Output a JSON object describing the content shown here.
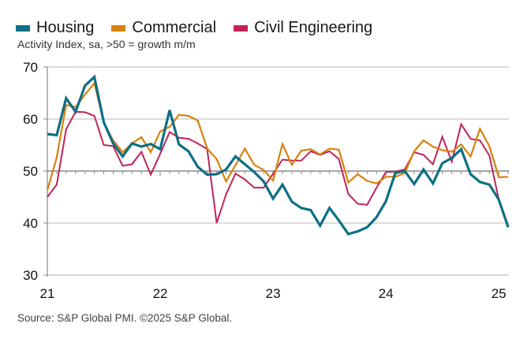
{
  "chart_data": {
    "type": "line",
    "title": "",
    "subtitle": "Activity Index, sa, >50 = growth m/m",
    "xlabel": "",
    "ylabel": "",
    "ylim": [
      30,
      70
    ],
    "yticks": [
      "30",
      "40",
      "50",
      "60",
      "70"
    ],
    "xticks": [
      "21",
      "22",
      "23",
      "24",
      "25"
    ],
    "reference_line": 50,
    "grid": true,
    "legend_position": "top-left",
    "x": [
      "Jan-21",
      "Feb-21",
      "Mar-21",
      "Apr-21",
      "May-21",
      "Jun-21",
      "Jul-21",
      "Aug-21",
      "Sep-21",
      "Oct-21",
      "Nov-21",
      "Dec-21",
      "Jan-22",
      "Feb-22",
      "Mar-22",
      "Apr-22",
      "May-22",
      "Jun-22",
      "Jul-22",
      "Aug-22",
      "Sep-22",
      "Oct-22",
      "Nov-22",
      "Dec-22",
      "Jan-23",
      "Feb-23",
      "Mar-23",
      "Apr-23",
      "May-23",
      "Jun-23",
      "Jul-23",
      "Aug-23",
      "Sep-23",
      "Oct-23",
      "Nov-23",
      "Dec-23",
      "Jan-24",
      "Feb-24",
      "Mar-24",
      "Apr-24",
      "May-24",
      "Jun-24",
      "Jul-24",
      "Aug-24",
      "Sep-24",
      "Oct-24",
      "Nov-24",
      "Dec-24",
      "Jan-25",
      "Feb-25"
    ],
    "series": [
      {
        "name": "Housing",
        "color": "#0e6f86",
        "values": [
          57.1,
          56.9,
          64.0,
          61.4,
          66.4,
          68.1,
          59.4,
          55.3,
          52.8,
          55.3,
          54.7,
          55.2,
          54.2,
          61.7,
          55.1,
          53.8,
          50.8,
          49.3,
          49.4,
          50.3,
          52.8,
          51.3,
          49.8,
          48.0,
          44.7,
          47.4,
          44.1,
          42.9,
          42.5,
          39.5,
          42.9,
          40.5,
          37.9,
          38.4,
          39.2,
          41.1,
          44.2,
          49.6,
          50.0,
          47.5,
          50.3,
          47.6,
          51.5,
          52.5,
          54.2,
          49.4,
          47.9,
          47.4,
          44.5,
          39.2
        ]
      },
      {
        "name": "Commercial",
        "color": "#d9810b",
        "values": [
          46.3,
          52.6,
          62.7,
          62.3,
          64.7,
          66.9,
          59.3,
          55.9,
          53.6,
          55.3,
          56.5,
          53.6,
          57.6,
          58.5,
          60.8,
          60.6,
          59.7,
          54.3,
          52.3,
          48.0,
          51.1,
          54.3,
          51.2,
          50.2,
          48.2,
          55.2,
          51.2,
          53.9,
          54.2,
          53.2,
          54.3,
          54.1,
          47.8,
          49.4,
          48.1,
          47.6,
          48.9,
          48.9,
          49.6,
          53.8,
          55.9,
          54.7,
          54.0,
          53.7,
          55.1,
          52.8,
          58.1,
          54.8,
          48.8,
          48.9
        ]
      },
      {
        "name": "Civil Engineering",
        "color": "#c0245a",
        "values": [
          45.0,
          47.4,
          58.0,
          61.4,
          61.3,
          60.6,
          55.0,
          54.8,
          51.0,
          51.3,
          53.7,
          49.3,
          53.3,
          57.5,
          56.4,
          56.2,
          55.3,
          54.2,
          40.0,
          45.5,
          49.5,
          48.4,
          46.8,
          46.8,
          49.5,
          52.2,
          52.0,
          52.0,
          53.8,
          53.1,
          53.8,
          52.3,
          45.6,
          43.7,
          43.5,
          46.8,
          49.8,
          49.9,
          50.3,
          53.6,
          53.1,
          51.3,
          56.6,
          51.8,
          59.0,
          56.2,
          55.9,
          53.0,
          44.5,
          39.5
        ]
      }
    ]
  },
  "source": "Source: S&P Global PMI. ©2025 S&P Global."
}
